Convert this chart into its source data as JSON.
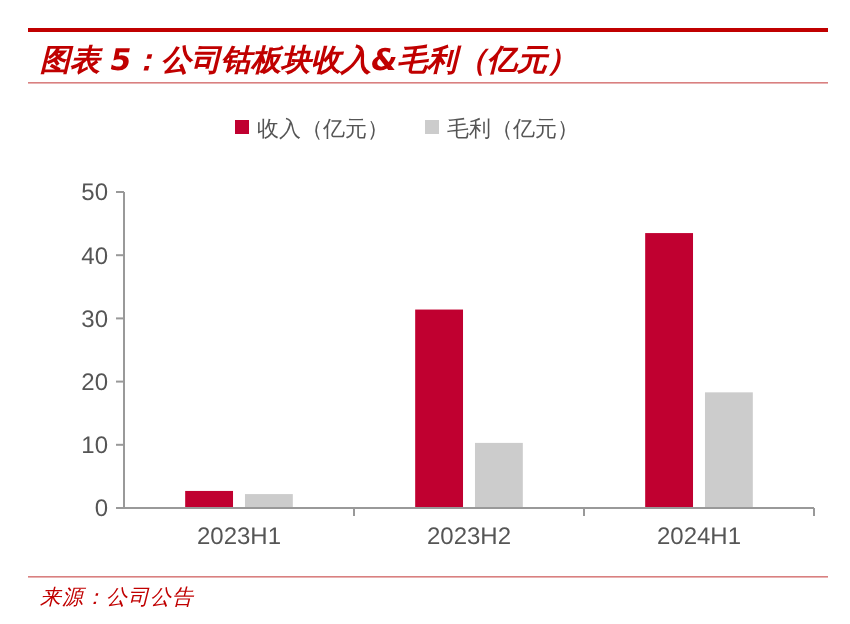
{
  "chart_data": {
    "type": "bar",
    "title": "图表 5：公司钴板块收入&毛利（亿元）",
    "categories": [
      "2023H1",
      "2023H2",
      "2024H1"
    ],
    "series": [
      {
        "name": "收入（亿元）",
        "color": "#c00030",
        "values": [
          2.7,
          31.4,
          43.5
        ]
      },
      {
        "name": "毛利（亿元）",
        "color": "#cccccc",
        "values": [
          2.2,
          10.3,
          18.3
        ]
      }
    ],
    "ylim": [
      0,
      50
    ],
    "yticks": [
      0,
      10,
      20,
      30,
      40,
      50
    ],
    "grid": false,
    "legend": "top",
    "annotations": [
      "来源：公司公告"
    ]
  }
}
